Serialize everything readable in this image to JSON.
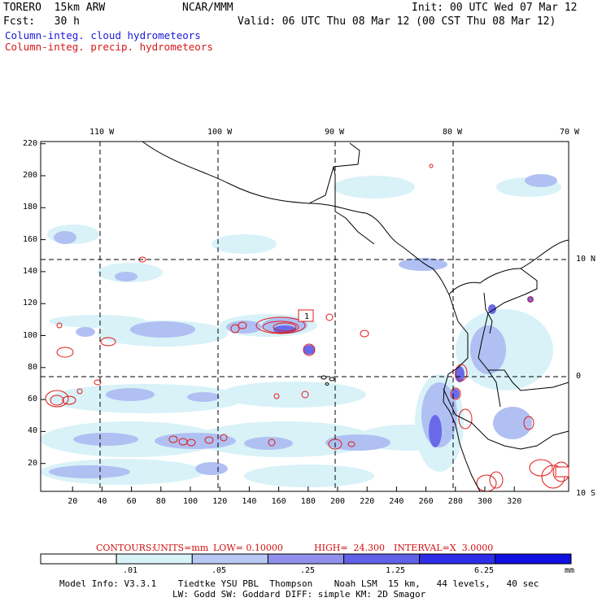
{
  "header": {
    "model": "TORERO  15km ARW",
    "center": "NCAR/MMM",
    "init": "Init: 00 UTC Wed 07 Mar 12",
    "fcst": "Fcst:   30 h",
    "valid": "Valid: 06 UTC Thu 08 Mar 12 (00 CST Thu 08 Mar 12)"
  },
  "fields": {
    "cloud": "Column-integ. cloud hydrometeors",
    "precip": "Column-integ. precip. hydrometeors"
  },
  "axes": {
    "x_ticks": [
      "20",
      "40",
      "60",
      "80",
      "100",
      "120",
      "140",
      "160",
      "180",
      "200",
      "220",
      "240",
      "260",
      "280",
      "300",
      "320"
    ],
    "y_ticks": [
      "20",
      "40",
      "60",
      "80",
      "100",
      "120",
      "140",
      "160",
      "180",
      "200",
      "220"
    ],
    "lon_labels": [
      "110 W",
      "100 W",
      "90 W",
      "80 W",
      "70 W"
    ],
    "lat_labels": [
      "10 N",
      "0",
      "10 S"
    ]
  },
  "contour_label": "1",
  "contours_info": {
    "prefix": "CONTOURS:",
    "units": "UNITS=mm",
    "low": "LOW= 0.10000",
    "high": "HIGH=  24.300",
    "interval": "INTERVAL=X  3.0000"
  },
  "colorbar": {
    "labels": [
      ".01",
      ".05",
      ".25",
      "1.25",
      "6.25"
    ],
    "unit": "mm",
    "colors": [
      "#ffffff",
      "#d8f4f8",
      "#b8c8f4",
      "#9090ec",
      "#6060e8",
      "#2e2ee6",
      "#1010e0"
    ]
  },
  "model_info": {
    "line1": "Model Info: V3.3.1    Tiedtke YSU PBL  Thompson    Noah LSM  15 km,   44 levels,   40 sec",
    "line2": "LW: Godd SW: Goddard DIFF: simple KM: 2D Smagor"
  }
}
